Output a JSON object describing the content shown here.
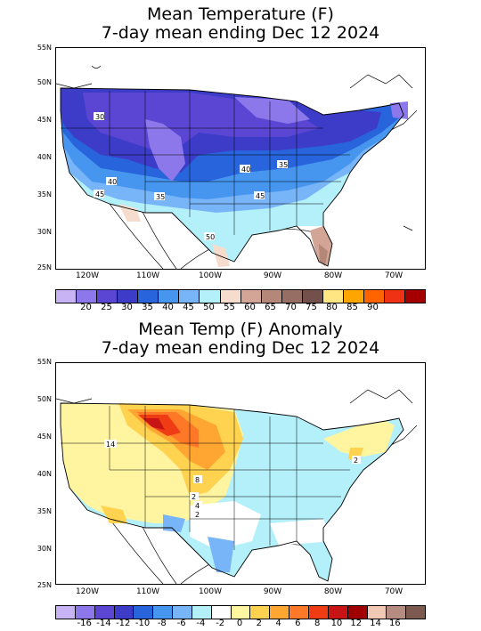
{
  "map1": {
    "title_line1": "Mean Temperature (F)",
    "title_line2": "7-day mean ending Dec 12 2024",
    "lat_labels": [
      "55N",
      "50N",
      "45N",
      "40N",
      "35N",
      "30N",
      "25N"
    ],
    "lon_labels": [
      "120W",
      "110W",
      "100W",
      "90W",
      "80W",
      "70W"
    ],
    "contour_labels": [
      "30",
      "40",
      "35",
      "40",
      "35",
      "45",
      "45",
      "50"
    ],
    "colorbar": {
      "colors": [
        "#c8b4f5",
        "#8c78eb",
        "#5a46d2",
        "#3c3cc8",
        "#2864dc",
        "#4696f0",
        "#78b4f8",
        "#b4f0fa",
        "#f5dccd",
        "#d2a596",
        "#b48778",
        "#966e64",
        "#73504b",
        "#ffe682",
        "#ffa500",
        "#ff6400",
        "#f03214",
        "#a50000"
      ],
      "ticks": [
        "20",
        "25",
        "30",
        "35",
        "40",
        "45",
        "50",
        "55",
        "60",
        "65",
        "70",
        "75",
        "80",
        "85",
        "90"
      ]
    }
  },
  "map2": {
    "title_line1": "Mean Temp (F) Anomaly",
    "title_line2": "7-day mean ending Dec 12 2024",
    "lat_labels": [
      "55N",
      "50N",
      "45N",
      "40N",
      "35N",
      "30N",
      "25N"
    ],
    "lon_labels": [
      "120W",
      "110W",
      "100W",
      "90W",
      "80W",
      "70W"
    ],
    "contour_labels": [
      "14",
      "8",
      "2",
      "4",
      "2",
      "2"
    ],
    "colorbar": {
      "colors": [
        "#c8b4f5",
        "#8c78eb",
        "#5a46d2",
        "#3c3cc8",
        "#2864dc",
        "#4696f0",
        "#78b4f8",
        "#b4f0fa",
        "#ffffff",
        "#fff5a0",
        "#ffd250",
        "#ffa532",
        "#ff7828",
        "#f03c14",
        "#c81414",
        "#a00000",
        "#f0c8b4",
        "#b48c82",
        "#7d5a50"
      ],
      "ticks": [
        "-16",
        "-14",
        "-12",
        "-10",
        "-8",
        "-6",
        "-4",
        "-2",
        "0",
        "2",
        "4",
        "6",
        "8",
        "10",
        "12",
        "14",
        "16"
      ]
    }
  }
}
